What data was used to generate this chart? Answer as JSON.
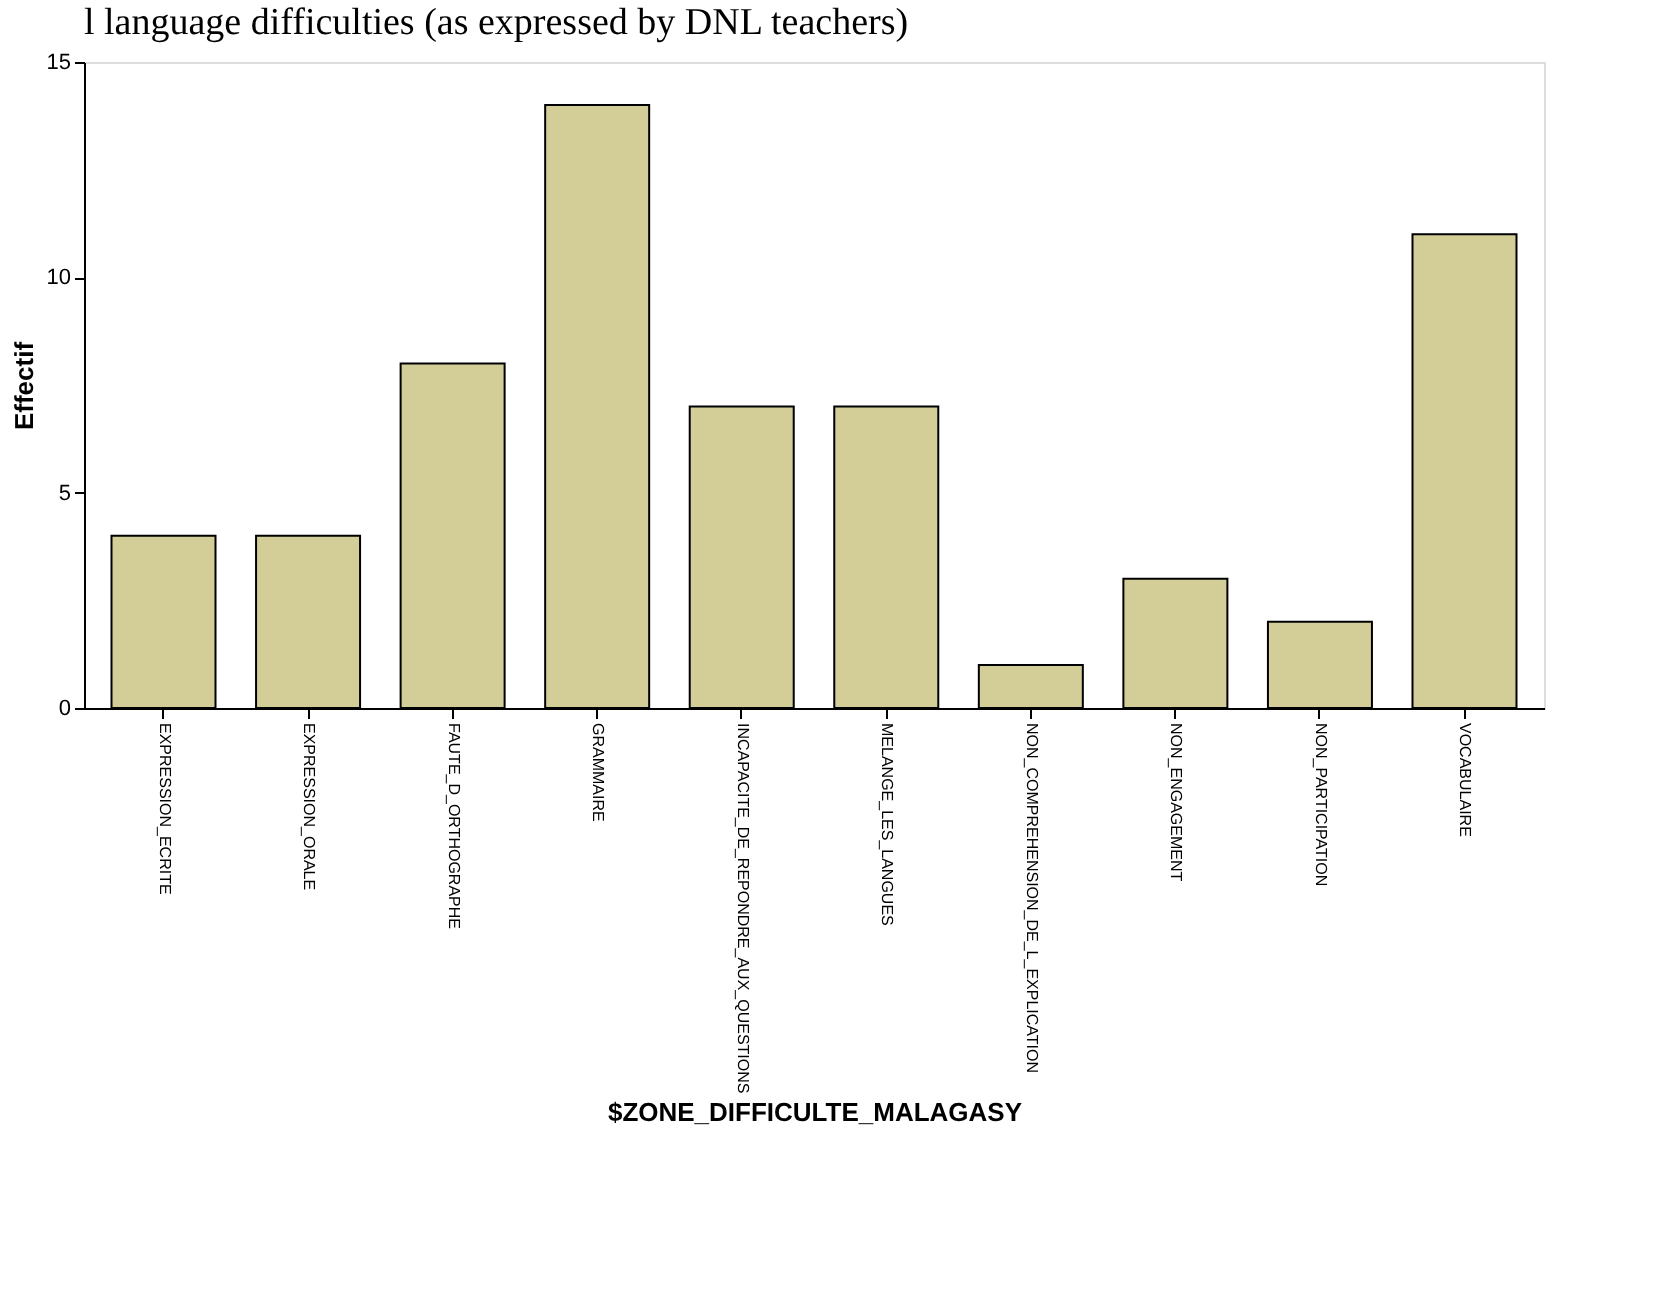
{
  "chart_data": {
    "type": "bar",
    "title": "l language difficulties (as expressed by DNL teachers)",
    "xlabel": "$ZONE_DIFFICULTE_MALAGASY",
    "ylabel": "Effectif",
    "categories": [
      "EXPRESSION_ECRITE",
      "EXPRESSION_ORALE",
      "FAUTE_D_ORTHOGRAPHE",
      "GRAMMAIRE",
      "INCAPACITE_DE_REPONDRE_AUX_QUESTIONS",
      "MELANGE_LES_LANGUES",
      "NON_COMPREHENSION_DE_L_EXPLICATION",
      "NON_ENGAGEMENT",
      "NON_PARTICIPATION",
      "VOCABULAIRE"
    ],
    "values": [
      4,
      4,
      8,
      14,
      7,
      7,
      1,
      3,
      2,
      11
    ],
    "color": "#d3ce98",
    "ylim": [
      0,
      15
    ],
    "yticks": [
      0,
      5,
      10,
      15
    ],
    "grid": false
  }
}
